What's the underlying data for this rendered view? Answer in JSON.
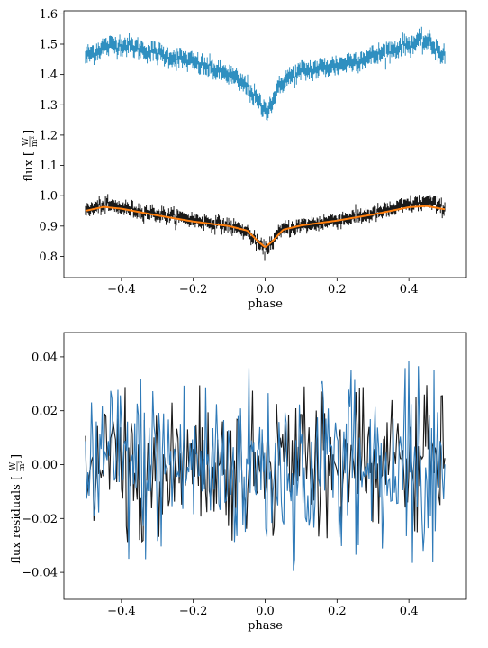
{
  "chart_data": [
    {
      "type": "line",
      "xlabel": "phase",
      "ylabel": "flux [",
      "ylabel_unit_num": "W",
      "ylabel_unit_den": "m²",
      "ylabel_close": "]",
      "xlim": [
        -0.56,
        0.56
      ],
      "ylim": [
        0.73,
        1.61
      ],
      "xticks": [
        -0.4,
        -0.2,
        0.0,
        0.2,
        0.4
      ],
      "xtick_labels": [
        "−0.4",
        "−0.2",
        "0.0",
        "0.2",
        "0.4"
      ],
      "yticks": [
        0.8,
        0.9,
        1.0,
        1.1,
        1.2,
        1.3,
        1.4,
        1.5,
        1.6
      ],
      "ytick_labels": [
        "0.8",
        "0.9",
        "1.0",
        "1.1",
        "1.2",
        "1.3",
        "1.4",
        "1.5",
        "1.6"
      ],
      "grid": false,
      "colors": {
        "blue": "#2f8fc0",
        "black": "#1a1a1a",
        "orange": "#ff7f0e"
      },
      "series": [
        {
          "style": "errorbar",
          "color": "#2f8fc0",
          "x": [
            -0.5,
            -0.45,
            -0.4,
            -0.3,
            -0.2,
            -0.1,
            -0.05,
            -0.02,
            0.0,
            0.02,
            0.05,
            0.1,
            0.2,
            0.3,
            0.4,
            0.45,
            0.5
          ],
          "y": [
            1.46,
            1.49,
            1.5,
            1.47,
            1.44,
            1.4,
            1.36,
            1.31,
            1.28,
            1.31,
            1.38,
            1.41,
            1.43,
            1.46,
            1.5,
            1.51,
            1.46
          ],
          "yerr": 0.02
        },
        {
          "style": "errorbar",
          "color": "#1a1a1a",
          "x": [
            -0.5,
            -0.45,
            -0.4,
            -0.3,
            -0.2,
            -0.1,
            -0.05,
            -0.02,
            0.0,
            0.02,
            0.05,
            0.1,
            0.2,
            0.3,
            0.4,
            0.45,
            0.5
          ],
          "y": [
            0.95,
            0.97,
            0.96,
            0.94,
            0.92,
            0.9,
            0.88,
            0.84,
            0.82,
            0.85,
            0.89,
            0.9,
            0.92,
            0.94,
            0.97,
            0.98,
            0.96
          ],
          "yerr": 0.015
        },
        {
          "style": "line",
          "color": "#ff7f0e",
          "x": [
            -0.5,
            -0.45,
            -0.4,
            -0.3,
            -0.2,
            -0.1,
            -0.05,
            -0.02,
            0.0,
            0.02,
            0.05,
            0.1,
            0.2,
            0.3,
            0.4,
            0.45,
            0.5
          ],
          "y": [
            0.95,
            0.963,
            0.957,
            0.935,
            0.915,
            0.9,
            0.885,
            0.85,
            0.83,
            0.85,
            0.888,
            0.902,
            0.918,
            0.938,
            0.962,
            0.966,
            0.955
          ]
        }
      ]
    },
    {
      "type": "line",
      "xlabel": "phase",
      "ylabel": "flux residuals [",
      "ylabel_unit_num": "W",
      "ylabel_unit_den": "m²",
      "ylabel_close": "]",
      "xlim": [
        -0.56,
        0.56
      ],
      "ylim": [
        -0.05,
        0.049
      ],
      "xticks": [
        -0.4,
        -0.2,
        0.0,
        0.2,
        0.4
      ],
      "xtick_labels": [
        "−0.4",
        "−0.2",
        "0.0",
        "0.2",
        "0.4"
      ],
      "yticks": [
        -0.04,
        -0.02,
        0.0,
        0.02,
        0.04
      ],
      "ytick_labels": [
        "−0.04",
        "−0.02",
        "0.00",
        "0.02",
        "0.04"
      ],
      "grid": false,
      "series": [
        {
          "color": "#1a1a1a",
          "x_range": [
            -0.5,
            0.5
          ],
          "amplitude": 0.03,
          "n": 300
        },
        {
          "color": "#2f7ab8",
          "x_range": [
            -0.5,
            0.5
          ],
          "amplitude": 0.04,
          "n": 300
        }
      ]
    }
  ]
}
